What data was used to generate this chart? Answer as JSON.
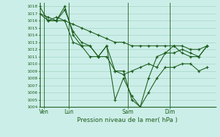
{
  "background_color": "#cceee8",
  "grid_color": "#99ccbb",
  "line_color": "#1a5c1a",
  "title": "Pression niveau de la mer( hPa )",
  "ylim": [
    1004,
    1018.5
  ],
  "yticks": [
    1004,
    1005,
    1006,
    1007,
    1008,
    1009,
    1010,
    1011,
    1012,
    1013,
    1014,
    1015,
    1016,
    1017,
    1018
  ],
  "xtick_labels": [
    "Ven",
    "Lun",
    "Sam",
    "Dim"
  ],
  "xtick_positions": [
    0.5,
    3.5,
    10.5,
    15.5
  ],
  "vline_positions": [
    0.5,
    3.5,
    10.5,
    15.5
  ],
  "xlim": [
    0,
    21
  ],
  "series1_x": [
    0,
    1,
    2,
    3,
    4,
    5,
    6,
    7,
    8,
    9,
    10,
    11,
    12,
    13,
    14,
    15,
    16,
    17,
    18,
    19,
    20
  ],
  "series1_y": [
    1018,
    1016,
    1016,
    1016,
    1015.5,
    1015,
    1014.5,
    1014,
    1013.5,
    1013,
    1013,
    1012.5,
    1012.5,
    1012.5,
    1012.5,
    1012.5,
    1012.5,
    1012.5,
    1012,
    1012,
    1012.5
  ],
  "series2_x": [
    0,
    1,
    2,
    3,
    4,
    5,
    6,
    7,
    8,
    9,
    10,
    11,
    12,
    13,
    14,
    15,
    16,
    17,
    18,
    19,
    20
  ],
  "series2_y": [
    1017,
    1016.5,
    1016,
    1017.5,
    1014.5,
    1013,
    1012.5,
    1011,
    1011,
    1009,
    1008.5,
    1009,
    1009.5,
    1010.0,
    1009.5,
    1011.5,
    1012.5,
    1011.5,
    1011,
    1011,
    1012.5
  ],
  "series3_x": [
    0,
    1,
    2,
    3,
    4,
    5,
    6,
    7,
    8,
    9,
    10,
    11,
    12,
    13,
    14,
    15,
    16,
    17,
    18,
    19,
    20
  ],
  "series3_y": [
    1017,
    1016,
    1016,
    1018,
    1014,
    1012.5,
    1011,
    1011,
    1012.5,
    1009,
    1009,
    1005,
    1004,
    1006,
    1008,
    1009.5,
    1009.5,
    1010,
    1010,
    1009,
    1009.5
  ],
  "series4_x": [
    1,
    2,
    3,
    4,
    5,
    6,
    7,
    8,
    9,
    10,
    11,
    12,
    13,
    14,
    15,
    16,
    17,
    18,
    19,
    20
  ],
  "series4_y": [
    1016,
    1016.5,
    1016,
    1013,
    1012.5,
    1012.5,
    1011,
    1012.5,
    1005,
    1008,
    1005.5,
    1004,
    1008,
    1011,
    1011.5,
    1011.5,
    1012,
    1011.5,
    1011,
    1012.5
  ]
}
